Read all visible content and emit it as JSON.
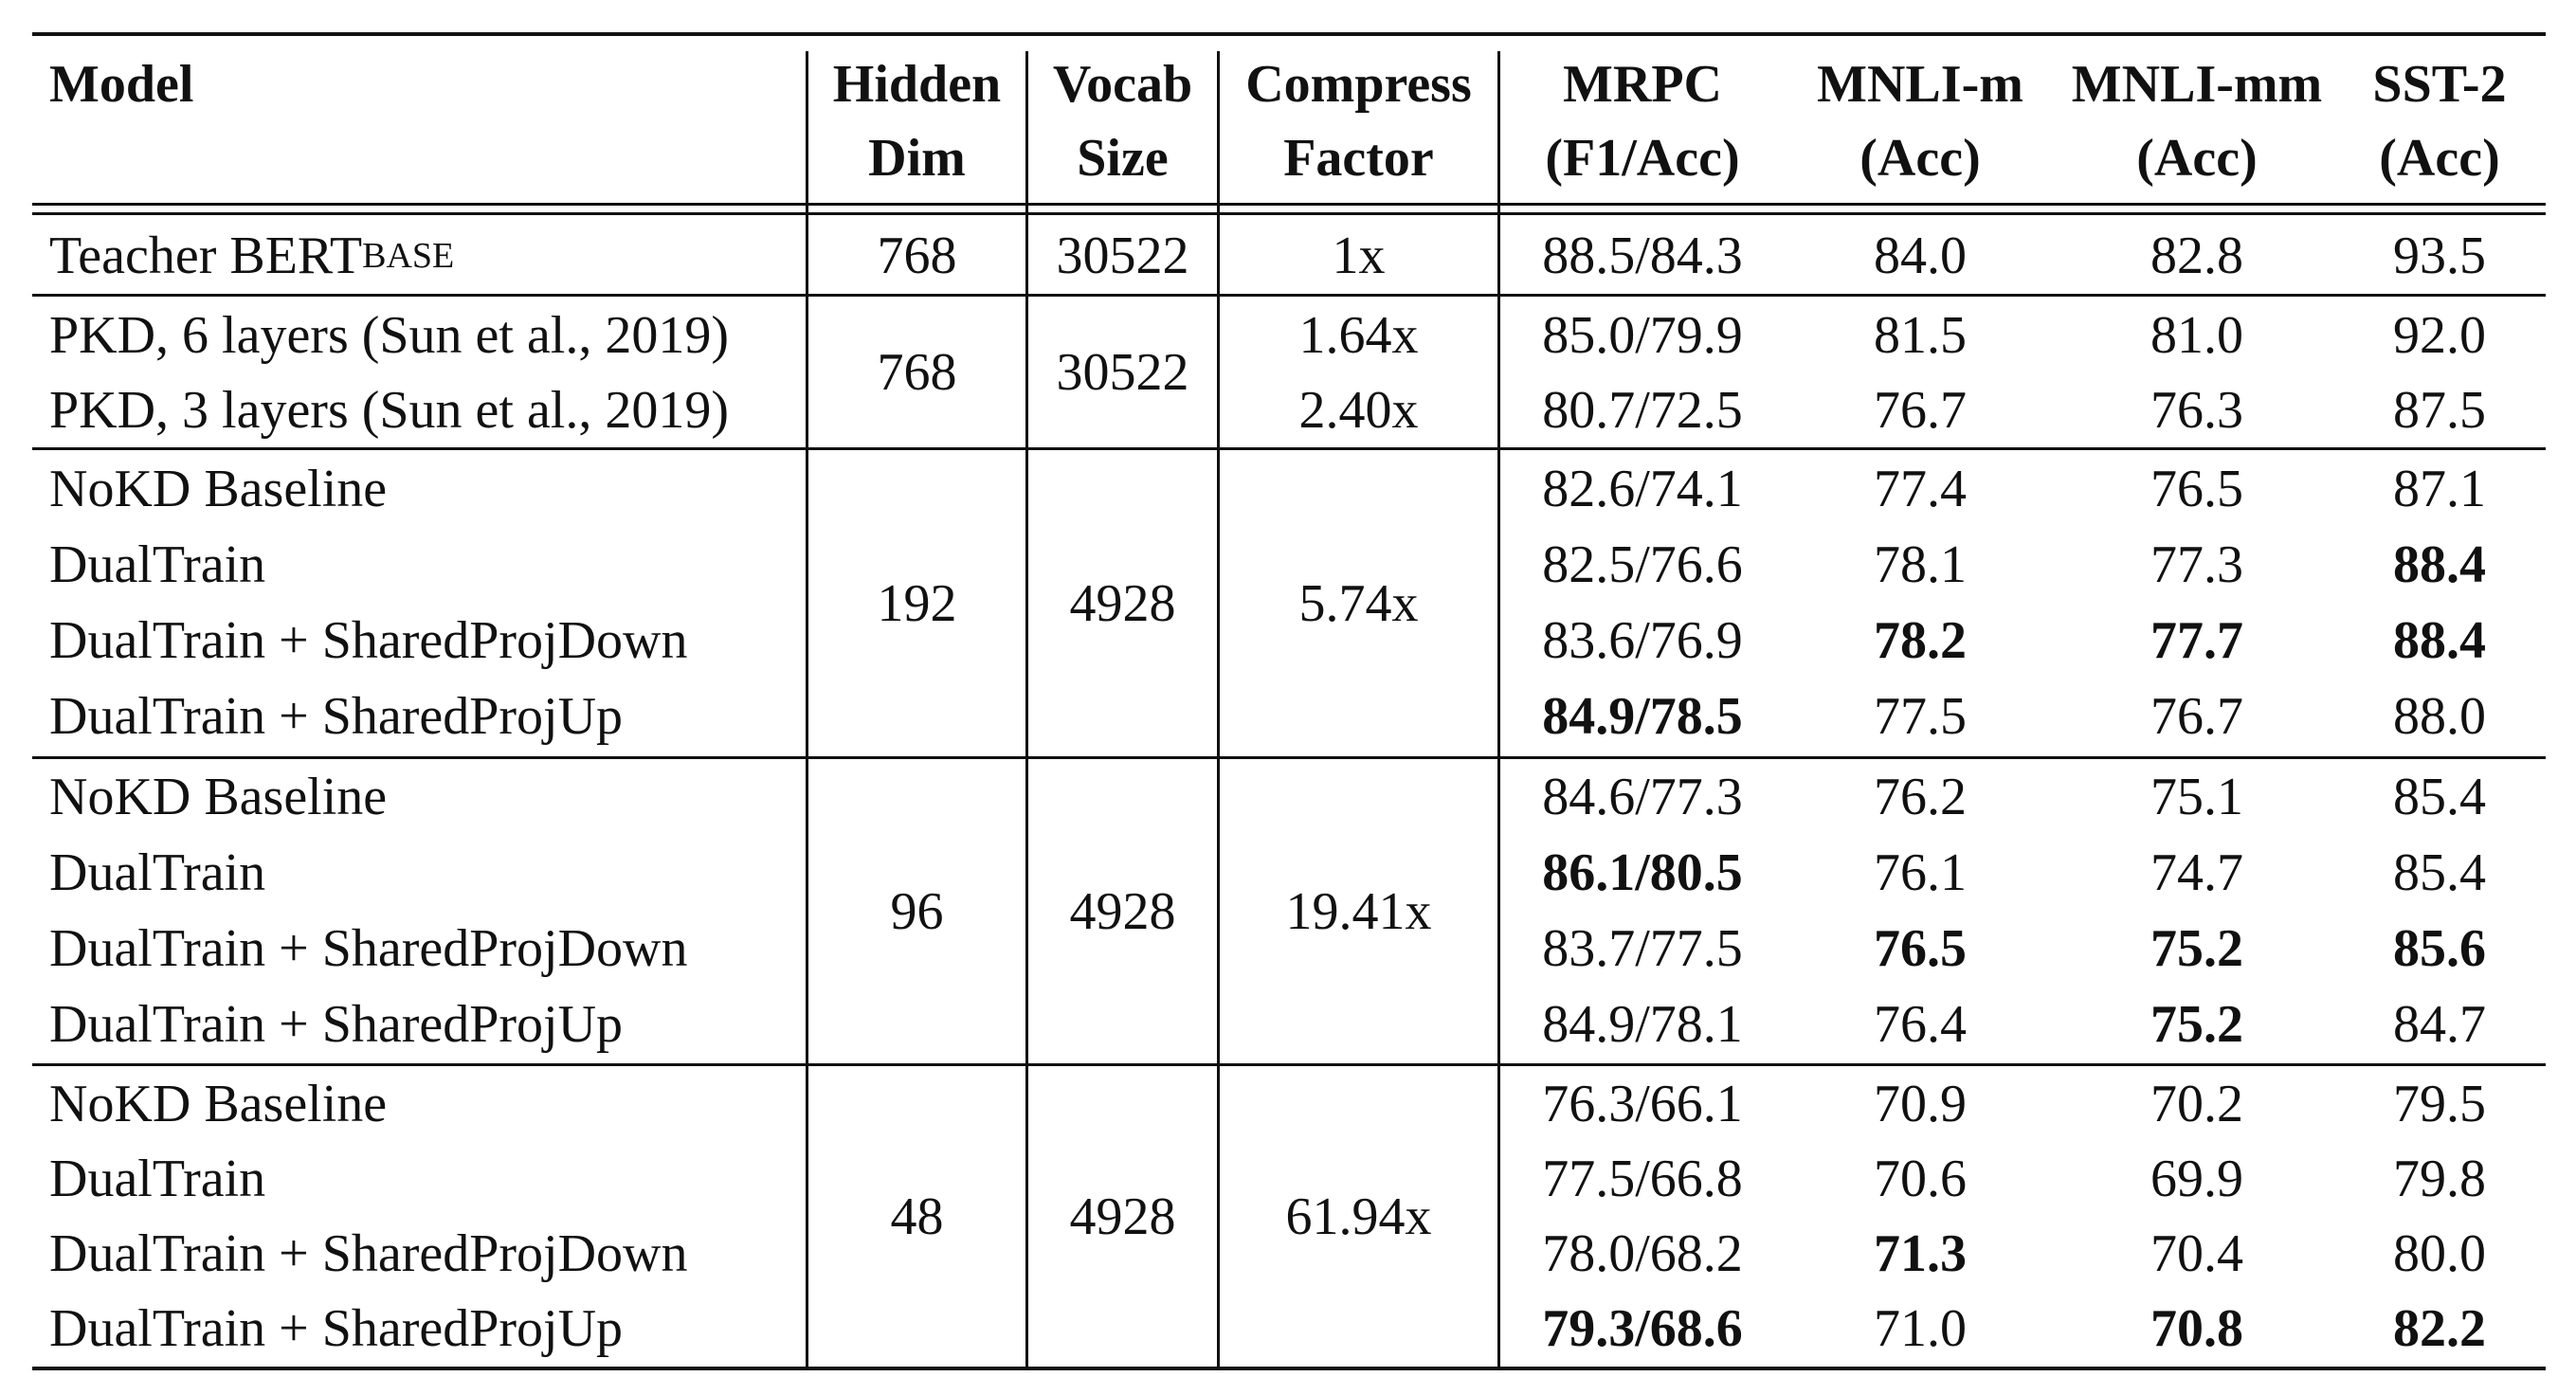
{
  "header": {
    "model": "Model",
    "hidden_dim": [
      "Hidden",
      "Dim"
    ],
    "vocab_size": [
      "Vocab",
      "Size"
    ],
    "compress_factor": [
      "Compress",
      "Factor"
    ],
    "mrpc": [
      "MRPC",
      "(F1/Acc)"
    ],
    "mnli_m": [
      "MNLI-m",
      "(Acc)"
    ],
    "mnli_mm": [
      "MNLI-mm",
      "(Acc)"
    ],
    "sst2": [
      "SST-2",
      "(Acc)"
    ]
  },
  "teacher": {
    "model": "Teacher BERT",
    "model_sub": "BASE",
    "hidden_dim": "768",
    "vocab_size": "30522",
    "compress_factor": "1x",
    "mrpc": "88.5/84.3",
    "mnli_m": "84.0",
    "mnli_mm": "82.8",
    "sst2": "93.5"
  },
  "pkd": {
    "hidden_dim": "768",
    "vocab_size": "30522",
    "rows": [
      {
        "model": "PKD, 6 layers (Sun et al., 2019)",
        "compress_factor": "1.64x",
        "mrpc": "85.0/79.9",
        "mnli_m": "81.5",
        "mnli_mm": "81.0",
        "sst2": "92.0"
      },
      {
        "model": "PKD, 3 layers (Sun et al., 2019)",
        "compress_factor": "2.40x",
        "mrpc": "80.7/72.5",
        "mnli_m": "76.7",
        "mnli_mm": "76.3",
        "sst2": "87.5"
      }
    ]
  },
  "groups": [
    {
      "hidden_dim": "192",
      "vocab_size": "4928",
      "compress_factor": "5.74x",
      "rows": [
        {
          "model": "NoKD Baseline",
          "mrpc": "82.6/74.1",
          "mnli_m": "77.4",
          "mnli_mm": "76.5",
          "sst2": "87.1"
        },
        {
          "model": "DualTrain",
          "mrpc": "82.5/76.6",
          "mnli_m": "78.1",
          "mnli_mm": "77.3",
          "sst2": "88.4"
        },
        {
          "model": "DualTrain + SharedProjDown",
          "mrpc": "83.6/76.9",
          "mnli_m": "78.2",
          "mnli_mm": "77.7",
          "sst2": "88.4"
        },
        {
          "model": "DualTrain + SharedProjUp",
          "mrpc": "84.9/78.5",
          "mnli_m": "77.5",
          "mnli_mm": "76.7",
          "sst2": "88.0"
        }
      ]
    },
    {
      "hidden_dim": "96",
      "vocab_size": "4928",
      "compress_factor": "19.41x",
      "rows": [
        {
          "model": "NoKD Baseline",
          "mrpc": "84.6/77.3",
          "mnli_m": "76.2",
          "mnli_mm": "75.1",
          "sst2": "85.4"
        },
        {
          "model": "DualTrain",
          "mrpc": "86.1/80.5",
          "mnli_m": "76.1",
          "mnli_mm": "74.7",
          "sst2": "85.4"
        },
        {
          "model": "DualTrain + SharedProjDown",
          "mrpc": "83.7/77.5",
          "mnli_m": "76.5",
          "mnli_mm": "75.2",
          "sst2": "85.6"
        },
        {
          "model": "DualTrain + SharedProjUp",
          "mrpc": "84.9/78.1",
          "mnli_m": "76.4",
          "mnli_mm": "75.2",
          "sst2": "84.7"
        }
      ]
    },
    {
      "hidden_dim": "48",
      "vocab_size": "4928",
      "compress_factor": "61.94x",
      "rows": [
        {
          "model": "NoKD Baseline",
          "mrpc": "76.3/66.1",
          "mnli_m": "70.9",
          "mnli_mm": "70.2",
          "sst2": "79.5"
        },
        {
          "model": "DualTrain",
          "mrpc": "77.5/66.8",
          "mnli_m": "70.6",
          "mnli_mm": "69.9",
          "sst2": "79.8"
        },
        {
          "model": "DualTrain + SharedProjDown",
          "mrpc": "78.0/68.2",
          "mnli_m": "71.3",
          "mnli_mm": "70.4",
          "sst2": "80.0"
        },
        {
          "model": "DualTrain + SharedProjUp",
          "mrpc": "79.3/68.6",
          "mnli_m": "71.0",
          "mnli_mm": "70.8",
          "sst2": "82.2"
        }
      ]
    }
  ]
}
